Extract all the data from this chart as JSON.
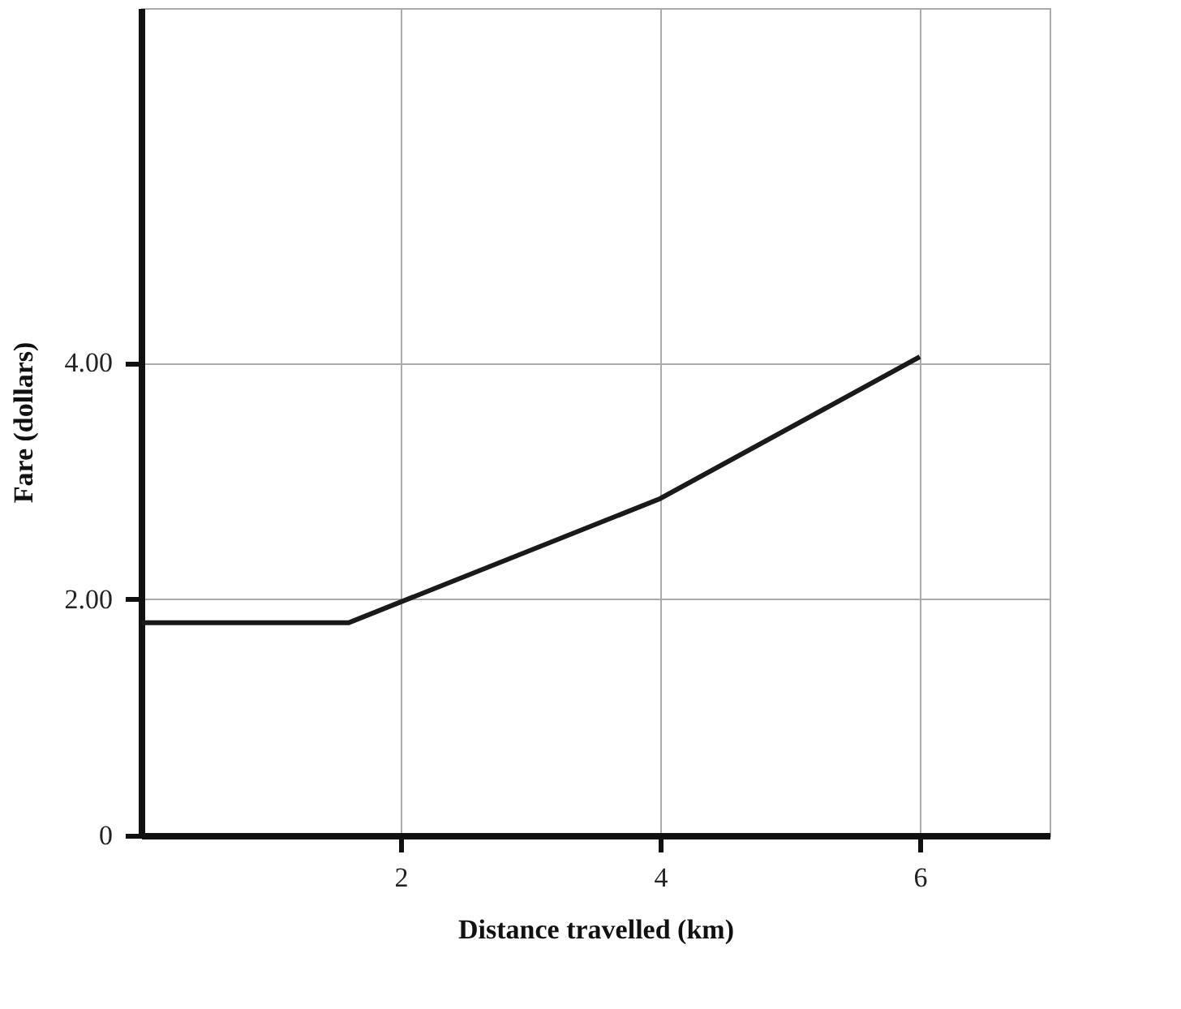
{
  "chart_data": {
    "type": "line",
    "xlabel": "Distance travelled (km)",
    "ylabel": "Fare (dollars)",
    "x": [
      0,
      1.6,
      4,
      6
    ],
    "series": [
      {
        "color": "#1a1a1a",
        "values": [
          1.8,
          1.8,
          2.85,
          4.05
        ]
      }
    ],
    "xlim": [
      0,
      7
    ],
    "ylim": [
      0,
      7
    ],
    "xticks": [
      2,
      4,
      6
    ],
    "yticks": [
      {
        "value": 0,
        "label": "0"
      },
      {
        "value": 2,
        "label": "2.00"
      },
      {
        "value": 4,
        "label": "4.00"
      }
    ],
    "grid": true,
    "marker": "none",
    "line_style": "solid"
  }
}
